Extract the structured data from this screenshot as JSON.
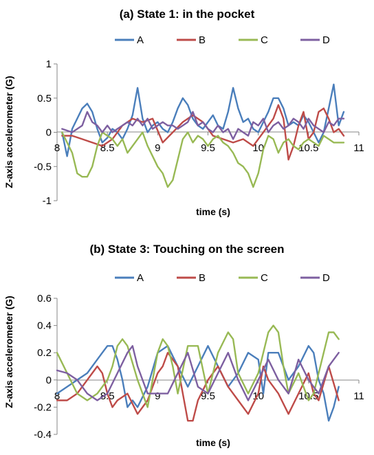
{
  "chart_data": [
    {
      "type": "line",
      "title": "(a) State 1: in the pocket",
      "xlabel": "time (s)",
      "ylabel": "Z-axis accelerometer (G)",
      "xlim": [
        8,
        11
      ],
      "ylim": [
        -1,
        1
      ],
      "xticks": [
        "8",
        "8.5",
        "9",
        "9.5",
        "10",
        "10.5",
        "11"
      ],
      "yticks": [
        "1",
        "0.5",
        "0",
        "-0.5",
        "-1"
      ],
      "legend": "top",
      "series": [
        {
          "name": "A",
          "color": "#4a7ebb",
          "x": [
            8.05,
            8.1,
            8.15,
            8.2,
            8.25,
            8.3,
            8.35,
            8.4,
            8.45,
            8.5,
            8.55,
            8.6,
            8.65,
            8.7,
            8.75,
            8.8,
            8.85,
            8.9,
            8.95,
            9.0,
            9.05,
            9.1,
            9.15,
            9.2,
            9.25,
            9.3,
            9.35,
            9.4,
            9.45,
            9.5,
            9.55,
            9.6,
            9.65,
            9.7,
            9.75,
            9.8,
            9.85,
            9.9,
            9.95,
            10.0,
            10.05,
            10.1,
            10.15,
            10.2,
            10.25,
            10.3,
            10.35,
            10.4,
            10.45,
            10.5,
            10.55,
            10.6,
            10.65,
            10.7,
            10.75,
            10.8,
            10.85
          ],
          "values": [
            0.0,
            -0.35,
            0.05,
            0.2,
            0.35,
            0.42,
            0.3,
            0.05,
            -0.15,
            -0.08,
            0.05,
            0.0,
            -0.1,
            0.05,
            0.25,
            0.65,
            0.2,
            0.0,
            0.1,
            0.15,
            0.05,
            0.0,
            0.15,
            0.35,
            0.5,
            0.4,
            0.2,
            0.1,
            0.05,
            0.15,
            0.25,
            0.1,
            0.05,
            0.3,
            0.65,
            0.35,
            0.15,
            0.2,
            0.05,
            0.0,
            0.15,
            0.3,
            0.5,
            0.5,
            0.35,
            0.1,
            0.15,
            0.1,
            0.25,
            0.15,
            0.0,
            -0.15,
            0.0,
            0.35,
            0.7,
            0.1,
            0.3
          ]
        },
        {
          "name": "B",
          "color": "#be4b48",
          "x": [
            8.05,
            8.15,
            8.25,
            8.35,
            8.45,
            8.55,
            8.65,
            8.75,
            8.85,
            8.95,
            9.05,
            9.15,
            9.25,
            9.35,
            9.45,
            9.55,
            9.65,
            9.75,
            9.85,
            9.95,
            10.05,
            10.15,
            10.2,
            10.25,
            10.3,
            10.35,
            10.4,
            10.45,
            10.5,
            10.55,
            10.6,
            10.65,
            10.7,
            10.75,
            10.8,
            10.85
          ],
          "values": [
            -0.05,
            -0.05,
            -0.1,
            -0.15,
            -0.2,
            -0.1,
            0.1,
            0.2,
            0.15,
            0.2,
            -0.15,
            0.0,
            0.15,
            0.25,
            0.15,
            -0.05,
            -0.1,
            -0.15,
            -0.1,
            -0.2,
            0.0,
            0.2,
            0.4,
            0.2,
            -0.4,
            -0.2,
            0.1,
            0.3,
            -0.1,
            0.0,
            0.3,
            0.35,
            0.2,
            0.0,
            0.05,
            -0.05
          ]
        },
        {
          "name": "C",
          "color": "#98b954",
          "x": [
            8.05,
            8.15,
            8.2,
            8.25,
            8.3,
            8.35,
            8.4,
            8.45,
            8.5,
            8.55,
            8.6,
            8.65,
            8.7,
            8.75,
            8.8,
            8.85,
            8.9,
            8.95,
            9.0,
            9.05,
            9.1,
            9.15,
            9.2,
            9.25,
            9.3,
            9.35,
            9.4,
            9.45,
            9.5,
            9.55,
            9.6,
            9.65,
            9.7,
            9.75,
            9.8,
            9.85,
            9.9,
            9.95,
            10.0,
            10.05,
            10.1,
            10.15,
            10.2,
            10.25,
            10.3,
            10.35,
            10.4,
            10.45,
            10.5,
            10.55,
            10.6,
            10.65,
            10.7,
            10.75,
            10.8,
            10.85
          ],
          "values": [
            0.0,
            -0.3,
            -0.6,
            -0.65,
            -0.65,
            -0.5,
            -0.2,
            0.0,
            -0.05,
            -0.1,
            -0.2,
            -0.1,
            -0.3,
            -0.2,
            -0.1,
            0.0,
            -0.2,
            -0.35,
            -0.5,
            -0.6,
            -0.8,
            -0.7,
            -0.4,
            -0.1,
            0.0,
            -0.15,
            -0.05,
            -0.1,
            -0.2,
            -0.1,
            -0.05,
            -0.15,
            -0.2,
            -0.3,
            -0.45,
            -0.5,
            -0.6,
            -0.8,
            -0.6,
            -0.25,
            -0.05,
            -0.1,
            -0.3,
            -0.15,
            -0.1,
            -0.2,
            -0.25,
            -0.15,
            -0.1,
            -0.15,
            -0.2,
            -0.05,
            -0.1,
            -0.15,
            -0.15,
            -0.15
          ]
        },
        {
          "name": "D",
          "color": "#7d5fa0",
          "x": [
            8.05,
            8.15,
            8.25,
            8.3,
            8.35,
            8.4,
            8.45,
            8.5,
            8.55,
            8.6,
            8.65,
            8.7,
            8.75,
            8.8,
            8.85,
            8.9,
            8.95,
            9.0,
            9.05,
            9.1,
            9.15,
            9.2,
            9.25,
            9.3,
            9.35,
            9.4,
            9.45,
            9.5,
            9.55,
            9.6,
            9.65,
            9.7,
            9.75,
            9.8,
            9.85,
            9.9,
            9.95,
            10.0,
            10.05,
            10.1,
            10.15,
            10.2,
            10.25,
            10.3,
            10.35,
            10.4,
            10.45,
            10.5,
            10.55,
            10.6,
            10.65,
            10.7,
            10.75,
            10.8,
            10.85
          ],
          "values": [
            0.05,
            0.0,
            0.1,
            0.3,
            0.15,
            0.1,
            0.0,
            0.1,
            0.0,
            0.05,
            0.1,
            0.15,
            0.1,
            0.2,
            0.1,
            0.2,
            0.05,
            0.1,
            0.15,
            0.1,
            0.1,
            0.05,
            0.1,
            0.15,
            0.3,
            0.1,
            0.15,
            0.05,
            0.0,
            0.1,
            0.0,
            0.05,
            -0.1,
            0.05,
            0.0,
            -0.05,
            0.15,
            0.1,
            0.2,
            0.0,
            0.1,
            0.15,
            0.05,
            0.1,
            0.2,
            0.15,
            0.05,
            0.2,
            0.1,
            0.05,
            0.0,
            0.15,
            0.1,
            0.2,
            0.2
          ]
        }
      ]
    },
    {
      "type": "line",
      "title": "(b) State 3: Touching on the screen",
      "xlabel": "time (s)",
      "ylabel": "Z-axis accelerometer (G)",
      "xlim": [
        8,
        11
      ],
      "ylim": [
        -0.4,
        0.6
      ],
      "xticks": [
        "8",
        "8.5",
        "9",
        "9.5",
        "10",
        "10.5",
        "11"
      ],
      "yticks": [
        "0.6",
        "0.4",
        "0.2",
        "0",
        "-0.2",
        "-0.4"
      ],
      "legend": "top",
      "series": [
        {
          "name": "A",
          "color": "#4a7ebb",
          "x": [
            8.0,
            8.1,
            8.2,
            8.3,
            8.4,
            8.45,
            8.5,
            8.55,
            8.6,
            8.65,
            8.7,
            8.75,
            8.8,
            8.9,
            9.0,
            9.1,
            9.2,
            9.3,
            9.4,
            9.5,
            9.6,
            9.7,
            9.8,
            9.9,
            10.0,
            10.05,
            10.1,
            10.2,
            10.3,
            10.4,
            10.5,
            10.55,
            10.6,
            10.65,
            10.7,
            10.75,
            10.8
          ],
          "values": [
            -0.1,
            -0.05,
            0.0,
            0.05,
            0.15,
            0.2,
            0.25,
            0.25,
            0.15,
            0.0,
            -0.2,
            -0.15,
            -0.2,
            -0.05,
            0.2,
            0.25,
            0.1,
            -0.05,
            0.1,
            0.25,
            0.1,
            -0.05,
            0.05,
            0.2,
            0.15,
            -0.1,
            0.2,
            0.2,
            0.0,
            0.1,
            0.25,
            0.2,
            0.0,
            -0.1,
            -0.3,
            -0.2,
            -0.05
          ]
        },
        {
          "name": "B",
          "color": "#be4b48",
          "x": [
            8.0,
            8.1,
            8.2,
            8.3,
            8.4,
            8.45,
            8.5,
            8.55,
            8.6,
            8.7,
            8.8,
            8.9,
            9.0,
            9.05,
            9.1,
            9.2,
            9.3,
            9.35,
            9.4,
            9.5,
            9.6,
            9.7,
            9.8,
            9.9,
            10.0,
            10.05,
            10.1,
            10.2,
            10.3,
            10.4,
            10.5,
            10.55,
            10.6,
            10.7,
            10.8
          ],
          "values": [
            -0.15,
            -0.15,
            -0.1,
            0.0,
            0.1,
            0.05,
            -0.1,
            -0.2,
            -0.15,
            -0.1,
            -0.25,
            -0.15,
            0.05,
            0.1,
            0.2,
            0.1,
            -0.3,
            -0.3,
            -0.15,
            0.0,
            0.1,
            -0.05,
            -0.15,
            -0.25,
            -0.1,
            0.1,
            0.0,
            -0.1,
            -0.25,
            -0.1,
            0.05,
            -0.1,
            -0.15,
            0.1,
            -0.15
          ]
        },
        {
          "name": "C",
          "color": "#98b954",
          "x": [
            8.0,
            8.1,
            8.2,
            8.3,
            8.4,
            8.5,
            8.55,
            8.6,
            8.65,
            8.7,
            8.8,
            8.9,
            9.0,
            9.05,
            9.1,
            9.15,
            9.2,
            9.3,
            9.4,
            9.5,
            9.6,
            9.7,
            9.75,
            9.8,
            9.9,
            10.0,
            10.05,
            10.1,
            10.15,
            10.2,
            10.25,
            10.3,
            10.4,
            10.5,
            10.55,
            10.6,
            10.7,
            10.75,
            10.8
          ],
          "values": [
            0.2,
            0.05,
            -0.1,
            -0.15,
            -0.1,
            0.0,
            0.1,
            0.25,
            0.3,
            0.25,
            0.0,
            -0.2,
            0.2,
            0.3,
            0.25,
            0.1,
            -0.1,
            0.25,
            0.25,
            -0.1,
            0.2,
            0.35,
            0.3,
            0.05,
            -0.1,
            0.05,
            0.2,
            0.35,
            0.4,
            0.35,
            0.1,
            -0.1,
            0.05,
            -0.15,
            -0.1,
            0.05,
            0.35,
            0.35,
            0.3
          ]
        },
        {
          "name": "D",
          "color": "#7d5fa0",
          "x": [
            8.0,
            8.1,
            8.2,
            8.3,
            8.4,
            8.5,
            8.6,
            8.7,
            8.75,
            8.8,
            8.9,
            9.0,
            9.1,
            9.2,
            9.3,
            9.4,
            9.5,
            9.6,
            9.7,
            9.8,
            9.9,
            10.0,
            10.1,
            10.2,
            10.3,
            10.4,
            10.5,
            10.6,
            10.7,
            10.8
          ],
          "values": [
            0.07,
            0.05,
            0.0,
            -0.1,
            -0.15,
            -0.1,
            0.05,
            0.2,
            0.25,
            0.1,
            -0.1,
            -0.1,
            -0.1,
            0.05,
            0.2,
            -0.05,
            -0.1,
            0.05,
            0.2,
            0.0,
            -0.15,
            0.0,
            0.15,
            0.0,
            -0.1,
            0.15,
            0.0,
            -0.1,
            0.1,
            0.2
          ]
        }
      ]
    }
  ]
}
